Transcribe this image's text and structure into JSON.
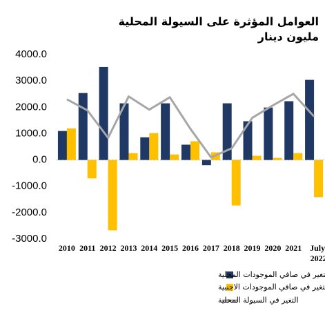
{
  "chart_data": {
    "type": "bar_line",
    "title": "العوامل المؤثرة على السيولة المحلية",
    "subtitle": "مليون دينار",
    "categories": [
      "2010",
      "2011",
      "2012",
      "2013",
      "2014",
      "2015",
      "2016",
      "2017",
      "2018",
      "2019",
      "2020",
      "2021",
      "July 2022"
    ],
    "series": [
      {
        "name": "التغير في صافي الموجودات المحلية",
        "type": "bar",
        "color": "#1f3864",
        "values": [
          1100,
          2540,
          3530,
          2150,
          860,
          2150,
          580,
          -200,
          2150,
          1470,
          1990,
          2230,
          3040
        ]
      },
      {
        "name": "التغير في صافي الموجودات الاجنبية",
        "type": "bar",
        "color": "#ffc000",
        "values": [
          1200,
          -700,
          -2670,
          260,
          1020,
          210,
          710,
          290,
          -1730,
          160,
          80,
          260,
          -1410
        ]
      },
      {
        "name": "التغير في السيولة المحلية",
        "type": "line",
        "color": "#a6a6a6",
        "values": [
          2300,
          1880,
          840,
          2410,
          1910,
          2380,
          1180,
          100,
          440,
          1600,
          2070,
          2510,
          1650
        ]
      }
    ],
    "ylim": [
      -3000,
      4000
    ],
    "yticks": [
      {
        "value": -3000,
        "label": "-3000.0"
      },
      {
        "value": -2000,
        "label": "-2000.0"
      },
      {
        "value": -1000,
        "label": "-1000.0"
      },
      {
        "value": 0,
        "label": "0.0"
      },
      {
        "value": 1000,
        "label": "1000.0"
      },
      {
        "value": 2000,
        "label": "2000.0"
      },
      {
        "value": 3000,
        "label": "3000.0"
      },
      {
        "value": 4000,
        "label": "4000.0"
      }
    ],
    "legend": "bottom"
  }
}
